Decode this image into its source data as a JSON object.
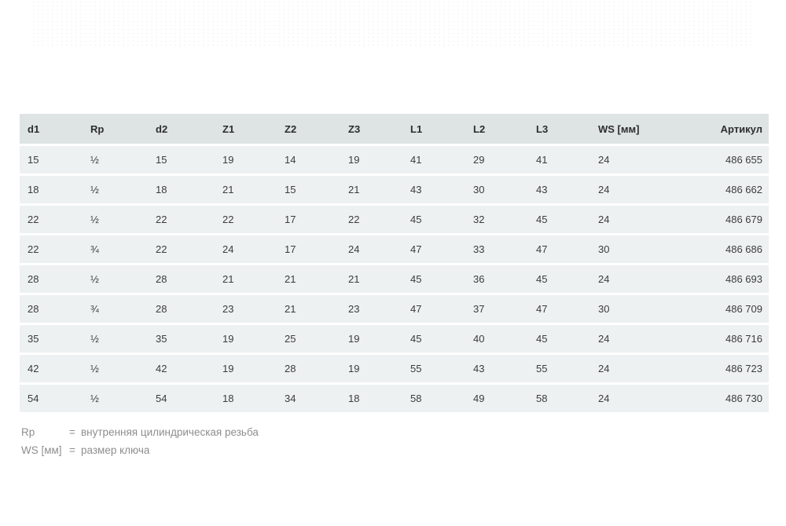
{
  "page": {
    "background": "#ffffff",
    "header_bg": "#dee3e3",
    "row_bg": "#edf1f1",
    "header_text_color": "#2d2d2d",
    "cell_text_color": "#3c3c3c",
    "footnote_text_color": "#8e8e8e"
  },
  "table": {
    "columns": [
      "d1",
      "Rp",
      "d2",
      "Z1",
      "Z2",
      "Z3",
      "L1",
      "L2",
      "L3",
      "WS [мм]",
      "Артикул"
    ],
    "rows": [
      [
        "15",
        "½",
        "15",
        "19",
        "14",
        "19",
        "41",
        "29",
        "41",
        "24",
        "486 655"
      ],
      [
        "18",
        "½",
        "18",
        "21",
        "15",
        "21",
        "43",
        "30",
        "43",
        "24",
        "486 662"
      ],
      [
        "22",
        "½",
        "22",
        "22",
        "17",
        "22",
        "45",
        "32",
        "45",
        "24",
        "486 679"
      ],
      [
        "22",
        "¾",
        "22",
        "24",
        "17",
        "24",
        "47",
        "33",
        "47",
        "30",
        "486 686"
      ],
      [
        "28",
        "½",
        "28",
        "21",
        "21",
        "21",
        "45",
        "36",
        "45",
        "24",
        "486 693"
      ],
      [
        "28",
        "¾",
        "28",
        "23",
        "21",
        "23",
        "47",
        "37",
        "47",
        "30",
        "486 709"
      ],
      [
        "35",
        "½",
        "35",
        "19",
        "25",
        "19",
        "45",
        "40",
        "45",
        "24",
        "486 716"
      ],
      [
        "42",
        "½",
        "42",
        "19",
        "28",
        "19",
        "55",
        "43",
        "55",
        "24",
        "486 723"
      ],
      [
        "54",
        "½",
        "54",
        "18",
        "34",
        "18",
        "58",
        "49",
        "58",
        "24",
        "486 730"
      ]
    ]
  },
  "footnotes": [
    {
      "term": "Rp",
      "eq": "=",
      "definition": "внутренняя цилиндрическая резьба"
    },
    {
      "term": "WS [мм]",
      "eq": "=",
      "definition": "размер ключа"
    }
  ]
}
